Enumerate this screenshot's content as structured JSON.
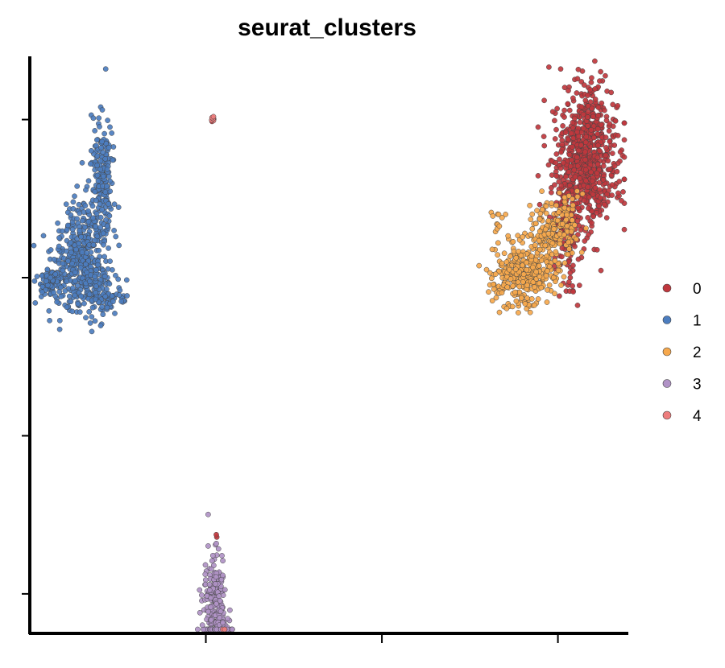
{
  "chart_data": {
    "type": "scatter",
    "title": "seurat_clusters",
    "xlabel": "",
    "ylabel": "",
    "xlim": [
      -15,
      19
    ],
    "ylim": [
      -6,
      8.6
    ],
    "x_ticks": [
      -5,
      5,
      15
    ],
    "y_ticks": [
      -5,
      -1,
      3,
      7
    ],
    "show_tick_labels": false,
    "grid": false,
    "legend_position": "right",
    "point_edge_color": "#444444",
    "series": [
      {
        "name": "0",
        "color": "#C0373D",
        "clusters": [
          {
            "center": [
              16.6,
              5.9
            ],
            "spread": [
              0.9,
              0.75
            ],
            "n": 650
          },
          {
            "center": [
              15.6,
              4.3
            ],
            "spread": [
              0.45,
              0.8
            ],
            "n": 150
          },
          {
            "center": [
              16.9,
              7.2
            ],
            "spread": [
              0.5,
              0.5
            ],
            "n": 80
          },
          {
            "center": [
              -4.6,
              7.0
            ],
            "spread": [
              0.05,
              0.05
            ],
            "n": 3
          },
          {
            "center": [
              -4.4,
              -3.5
            ],
            "spread": [
              0.05,
              0.05
            ],
            "n": 2
          }
        ]
      },
      {
        "name": "1",
        "color": "#4C7DBF",
        "clusters": [
          {
            "center": [
              -12.7,
              3.3
            ],
            "spread": [
              0.6,
              0.6
            ],
            "n": 200
          },
          {
            "center": [
              -11.6,
              3.8
            ],
            "spread": [
              0.55,
              0.8
            ],
            "n": 220
          },
          {
            "center": [
              -10.9,
              5.7
            ],
            "spread": [
              0.3,
              0.75
            ],
            "n": 160
          },
          {
            "center": [
              -13.8,
              2.9
            ],
            "spread": [
              0.35,
              0.15
            ],
            "n": 80
          },
          {
            "center": [
              -11.2,
              2.7
            ],
            "spread": [
              0.5,
              0.35
            ],
            "n": 90
          },
          {
            "center": [
              -10.1,
              2.5
            ],
            "spread": [
              0.4,
              0.15
            ],
            "n": 25
          }
        ]
      },
      {
        "name": "2",
        "color": "#F6A84C",
        "clusters": [
          {
            "center": [
              12.9,
              3.1
            ],
            "spread": [
              0.85,
              0.4
            ],
            "n": 300
          },
          {
            "center": [
              14.5,
              4.0
            ],
            "spread": [
              0.6,
              0.55
            ],
            "n": 170
          },
          {
            "center": [
              15.5,
              4.6
            ],
            "spread": [
              0.35,
              0.35
            ],
            "n": 45
          },
          {
            "center": [
              11.6,
              4.6
            ],
            "spread": [
              0.25,
              0.25
            ],
            "n": 12
          }
        ]
      },
      {
        "name": "3",
        "color": "#B092C6",
        "clusters": [
          {
            "center": [
              -4.5,
              -5.3
            ],
            "spread": [
              0.35,
              0.7
            ],
            "n": 230
          },
          {
            "center": [
              -4.1,
              -5.9
            ],
            "spread": [
              0.25,
              0.25
            ],
            "n": 40
          }
        ]
      },
      {
        "name": "4",
        "color": "#EE7D7D",
        "clusters": [
          {
            "center": [
              -4.6,
              7.05
            ],
            "spread": [
              0.05,
              0.05
            ],
            "n": 5
          },
          {
            "center": [
              -4.0,
              -6.1
            ],
            "spread": [
              0.05,
              0.05
            ],
            "n": 2
          }
        ]
      }
    ]
  }
}
